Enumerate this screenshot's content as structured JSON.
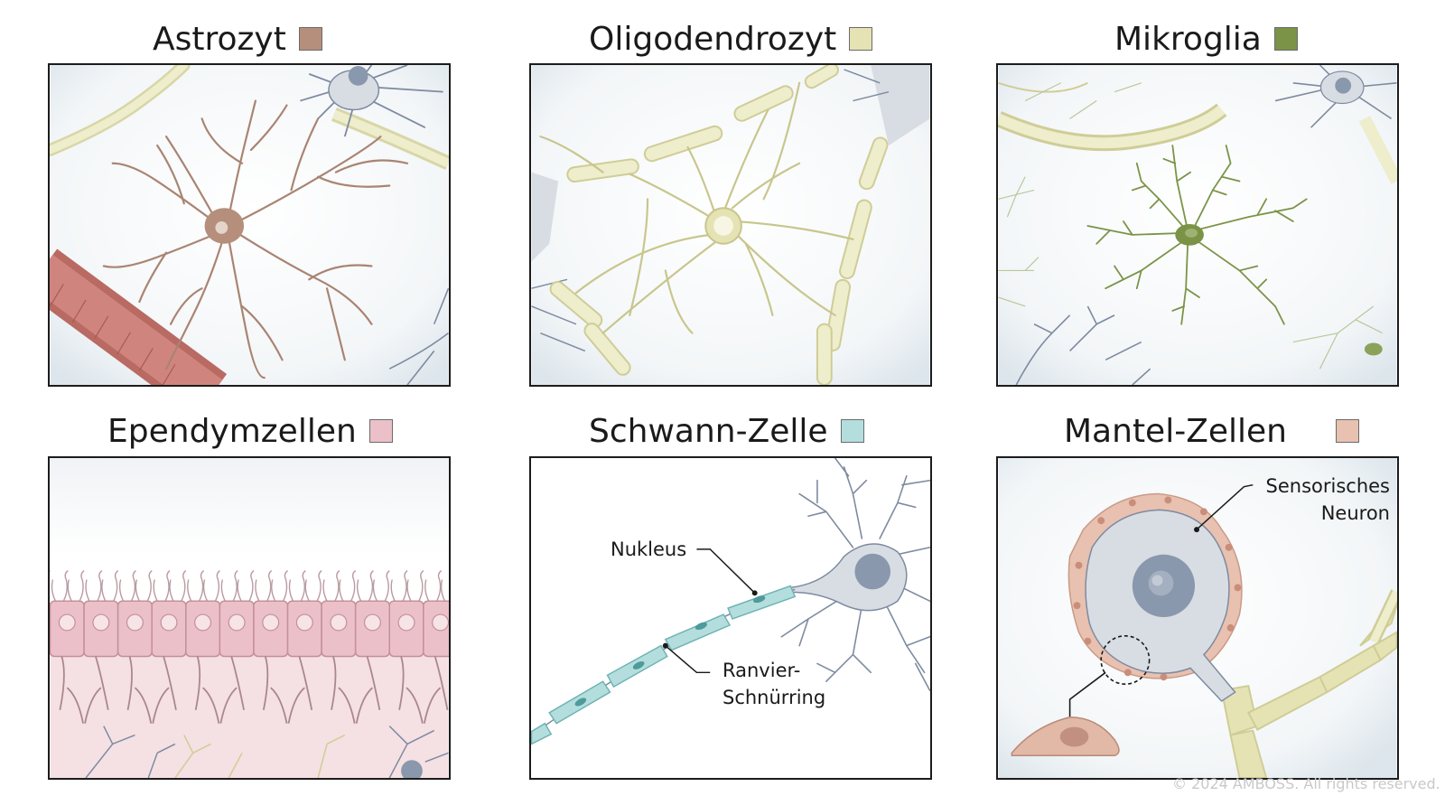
{
  "colors": {
    "astrozyt": "#b58f7c",
    "oligodendrozyt": "#e5e2b4",
    "mikroglia": "#7a9347",
    "ependymzellen": "#ecc0c8",
    "schwann": "#b4dede",
    "mantel": "#e8c1b0",
    "neuron": "#d8dde4",
    "neuron_line": "#7d8aa0",
    "frame": "#1c1c1c"
  },
  "icons": {
    "swatch": "legend-swatch-icon"
  },
  "panels": [
    {
      "id": "astrozyt",
      "title": "Astrozyt",
      "swatch": "#b58f7c"
    },
    {
      "id": "oligodendrozyt",
      "title": "Oligodendrozyt",
      "swatch": "#e5e2b4"
    },
    {
      "id": "mikroglia",
      "title": "Mikroglia",
      "swatch": "#7a9347"
    },
    {
      "id": "ependymzellen",
      "title": "Ependymzellen",
      "swatch": "#ecc0c8"
    },
    {
      "id": "schwann",
      "title": "Schwann-Zelle",
      "swatch": "#b4dede"
    },
    {
      "id": "mantel",
      "title": "Mantel-Zellen",
      "swatch": "#e8c1b0"
    }
  ],
  "annotations": {
    "nukleus": "Nukleus",
    "ranvier_1": "Ranvier-",
    "ranvier_2": "Schnürring",
    "sensorisch_1": "Sensorisches",
    "sensorisch_2": "Neuron"
  },
  "copyright": "© 2024 AMBOSS. All rights reserved."
}
